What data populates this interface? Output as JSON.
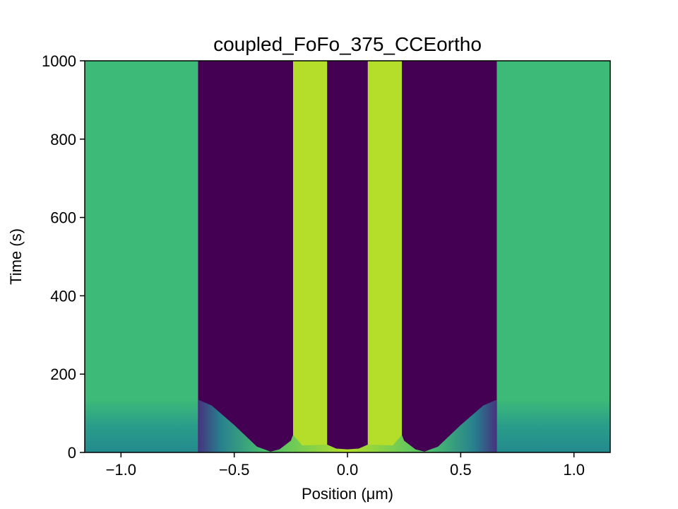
{
  "chart_data": {
    "type": "heatmap",
    "title": "coupled_FoFo_375_CCEortho",
    "xlabel": "Position (μm)",
    "ylabel": "Time (s)",
    "xlim": [
      -1.16,
      1.16
    ],
    "ylim": [
      0,
      1000
    ],
    "x_ticks": [
      -1.0,
      -0.5,
      0.0,
      0.5,
      1.0
    ],
    "x_tick_labels": [
      "−1.0",
      "−0.5",
      "0.0",
      "0.5",
      "1.0"
    ],
    "y_ticks": [
      0,
      200,
      400,
      600,
      800,
      1000
    ],
    "y_tick_labels": [
      "0",
      "200",
      "400",
      "600",
      "800",
      "1000"
    ],
    "grid": false,
    "colormap": "viridis",
    "regions": [
      {
        "name": "outer-left",
        "x": [
          -1.16,
          -0.66
        ],
        "color": "#3dba78",
        "early_color": "#23888e",
        "settle_time": 135
      },
      {
        "name": "dark-left",
        "x": [
          -0.66,
          -0.24
        ],
        "color": "#440154"
      },
      {
        "name": "yellow-left",
        "x": [
          -0.24,
          -0.09
        ],
        "color": "#b5de2b"
      },
      {
        "name": "dark-center",
        "x": [
          -0.09,
          0.09
        ],
        "color": "#440154"
      },
      {
        "name": "yellow-right",
        "x": [
          0.09,
          0.24
        ],
        "color": "#b5de2b"
      },
      {
        "name": "dark-right",
        "x": [
          0.24,
          0.66
        ],
        "color": "#440154"
      },
      {
        "name": "outer-right",
        "x": [
          0.66,
          1.16
        ],
        "color": "#3dba78",
        "early_color": "#23888e",
        "settle_time": 135
      }
    ],
    "transient_boundary": {
      "x": [
        -0.66,
        -0.6,
        -0.5,
        -0.4,
        -0.34,
        -0.3,
        -0.25,
        -0.24,
        -0.2,
        -0.09,
        -0.05,
        0.0,
        0.05,
        0.09,
        0.2,
        0.24,
        0.25,
        0.3,
        0.34,
        0.4,
        0.5,
        0.6,
        0.66
      ],
      "t": [
        135,
        120,
        70,
        15,
        2,
        8,
        30,
        45,
        18,
        20,
        10,
        8,
        10,
        20,
        18,
        45,
        30,
        8,
        2,
        15,
        70,
        120,
        135
      ]
    }
  }
}
